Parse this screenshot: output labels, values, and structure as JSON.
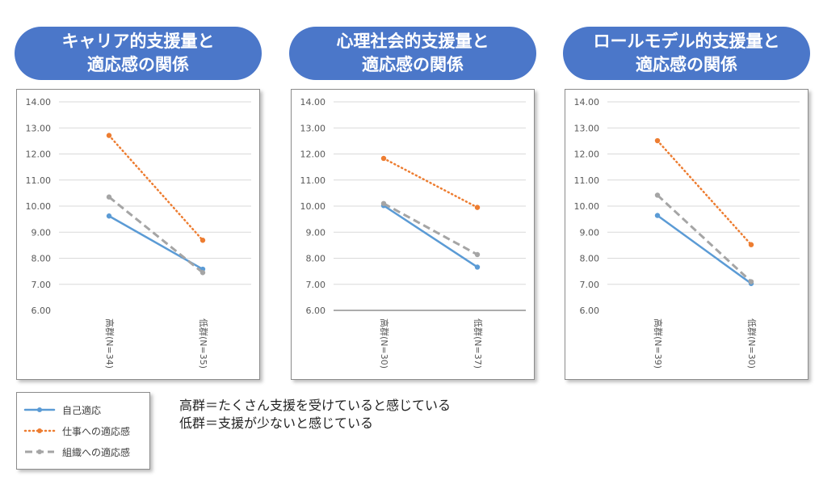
{
  "colors": {
    "pill": "#4b77c9",
    "self": "#5b9bd5",
    "work": "#ed7d31",
    "org": "#a5a5a5"
  },
  "chart_data": [
    {
      "type": "line",
      "title": "キャリア的支援量と\n適応感の関係",
      "title_lines": [
        "キャリア的支援量と",
        "適応感の関係"
      ],
      "categories": [
        "高群(N=34)",
        "低群(N=35)"
      ],
      "yticks": [
        "14.00",
        "13.00",
        "12.00",
        "11.00",
        "10.00",
        "9.00",
        "8.00",
        "7.00",
        "6.00"
      ],
      "ylim": [
        6,
        14
      ],
      "series": [
        {
          "name": "自己適応",
          "values": [
            9.62,
            7.58
          ]
        },
        {
          "name": "仕事への適応感",
          "values": [
            12.71,
            8.69
          ]
        },
        {
          "name": "組織への適応感",
          "values": [
            10.35,
            7.45
          ]
        }
      ]
    },
    {
      "type": "line",
      "title": "心理社会的支援量と\n適応感の関係",
      "title_lines": [
        "心理社会的支援量と",
        "適応感の関係"
      ],
      "categories": [
        "高群(N=30)",
        "低群(N=37)"
      ],
      "yticks": [
        "14.00",
        "13.00",
        "12.00",
        "11.00",
        "10.00",
        "9.00",
        "8.00",
        "7.00",
        "6.00"
      ],
      "ylim": [
        6,
        14
      ],
      "series": [
        {
          "name": "自己適応",
          "values": [
            10.02,
            7.66
          ]
        },
        {
          "name": "仕事への適応感",
          "values": [
            11.83,
            9.95
          ]
        },
        {
          "name": "組織への適応感",
          "values": [
            10.1,
            8.14
          ]
        }
      ]
    },
    {
      "type": "line",
      "title": "ロールモデル的支援量と\n適応感の関係",
      "title_lines": [
        "ロールモデル的支援量と",
        "適応感の関係"
      ],
      "categories": [
        "高群(N=39)",
        "低群(N=30)"
      ],
      "yticks": [
        "14.00",
        "13.00",
        "12.00",
        "11.00",
        "10.00",
        "9.00",
        "8.00",
        "7.00",
        "6.00"
      ],
      "ylim": [
        6,
        14
      ],
      "series": [
        {
          "name": "自己適応",
          "values": [
            9.64,
            7.03
          ]
        },
        {
          "name": "仕事への適応感",
          "values": [
            12.51,
            8.52
          ]
        },
        {
          "name": "組織への適応感",
          "values": [
            10.42,
            7.1
          ]
        }
      ]
    }
  ],
  "legend": {
    "items": [
      {
        "label": "自己適応",
        "style": "solid"
      },
      {
        "label": "仕事への適応感",
        "style": "dotted"
      },
      {
        "label": "組織への適応感",
        "style": "dashed"
      }
    ]
  },
  "notes": {
    "line1": "高群＝たくさん支援を受けていると感じている",
    "line2": "低群＝支援が少ないと感じている"
  }
}
